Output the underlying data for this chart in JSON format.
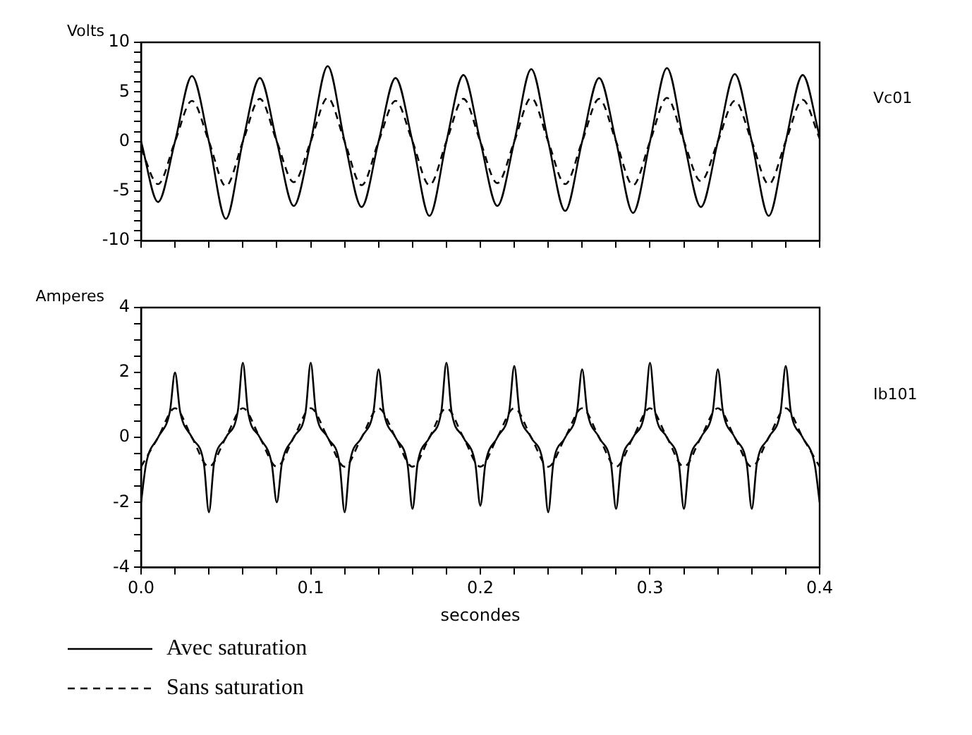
{
  "chart_data": [
    {
      "type": "line",
      "ylabel": "Volts",
      "annotations": [
        "Vc01"
      ],
      "tick_labels": "y",
      "legend": false,
      "x": [
        0,
        0.01,
        0.02,
        0.03,
        0.04,
        0.05,
        0.06,
        0.07,
        0.08,
        0.09,
        0.1,
        0.11,
        0.12,
        0.13,
        0.14,
        0.15,
        0.16,
        0.17,
        0.18,
        0.19,
        0.2,
        0.21,
        0.22,
        0.23,
        0.24,
        0.25,
        0.26,
        0.27,
        0.28,
        0.29,
        0.3,
        0.31,
        0.32,
        0.33,
        0.34,
        0.35,
        0.36,
        0.37,
        0.38,
        0.39,
        0.4
      ],
      "series": [
        {
          "color": "#000000",
          "line_style": "solid",
          "values": [
            0,
            -6.1,
            0,
            6.6,
            0,
            -7.8,
            0,
            6.4,
            0,
            -6.5,
            0,
            7.6,
            0,
            -6.6,
            0,
            6.4,
            0,
            -7.5,
            0,
            6.7,
            0,
            -6.5,
            0,
            7.3,
            0,
            -7.0,
            0,
            6.4,
            0,
            -7.2,
            0,
            7.4,
            0,
            -6.6,
            0,
            6.8,
            0,
            -7.5,
            0,
            6.7,
            0.5
          ]
        },
        {
          "color": "#000000",
          "line_style": "dashed",
          "values": [
            -0.7,
            -4.3,
            0,
            4.1,
            0,
            -4.5,
            0,
            4.3,
            0,
            -4.1,
            0,
            4.4,
            0,
            -4.4,
            0,
            4.1,
            0,
            -4.4,
            0,
            4.3,
            0,
            -4.2,
            0,
            4.4,
            0,
            -4.3,
            0,
            4.3,
            0,
            -4.4,
            0,
            4.4,
            0,
            -4.0,
            0,
            4.1,
            0,
            -4.3,
            0,
            4.2,
            0.3
          ]
        }
      ],
      "xlim": [
        0,
        0.4
      ],
      "xticks": [
        {
          "value": 0,
          "label": null
        },
        {
          "value": 0.02,
          "label": null
        },
        {
          "value": 0.04,
          "label": null
        },
        {
          "value": 0.06,
          "label": null
        },
        {
          "value": 0.08,
          "label": null
        },
        {
          "value": 0.1,
          "label": null
        },
        {
          "value": 0.12,
          "label": null
        },
        {
          "value": 0.14,
          "label": null
        },
        {
          "value": 0.16,
          "label": null
        },
        {
          "value": 0.18,
          "label": null
        },
        {
          "value": 0.2,
          "label": null
        },
        {
          "value": 0.22,
          "label": null
        },
        {
          "value": 0.24,
          "label": null
        },
        {
          "value": 0.26,
          "label": null
        },
        {
          "value": 0.28,
          "label": null
        },
        {
          "value": 0.3,
          "label": null
        },
        {
          "value": 0.32,
          "label": null
        },
        {
          "value": 0.34,
          "label": null
        },
        {
          "value": 0.36,
          "label": null
        },
        {
          "value": 0.38,
          "label": null
        },
        {
          "value": 0.4,
          "label": null
        }
      ],
      "ylim": [
        -10,
        10
      ],
      "yticks": [
        -10,
        {
          "value": -9,
          "label": null
        },
        {
          "value": -8,
          "label": null
        },
        {
          "value": -7,
          "label": null
        },
        {
          "value": -6,
          "label": null
        },
        -5,
        {
          "value": -4,
          "label": null
        },
        {
          "value": -3,
          "label": null
        },
        {
          "value": -2,
          "label": null
        },
        {
          "value": -1,
          "label": null
        },
        0,
        {
          "value": 1,
          "label": null
        },
        {
          "value": 2,
          "label": null
        },
        {
          "value": 3,
          "label": null
        },
        {
          "value": 4,
          "label": null
        },
        5,
        {
          "value": 6,
          "label": null
        },
        {
          "value": 7,
          "label": null
        },
        {
          "value": 8,
          "label": null
        },
        {
          "value": 9,
          "label": null
        },
        10
      ]
    },
    {
      "type": "line",
      "ylabel": "Amperes",
      "xlabel": "secondes",
      "annotations": [
        "Ib101"
      ],
      "legend": "bottom",
      "x": [
        0,
        0.003,
        0.01,
        0.017,
        0.02,
        0.023,
        0.03,
        0.037,
        0.04,
        0.043,
        0.05,
        0.057,
        0.06,
        0.063,
        0.07,
        0.077,
        0.08,
        0.083,
        0.09,
        0.097,
        0.1,
        0.103,
        0.11,
        0.117,
        0.12,
        0.123,
        0.13,
        0.137,
        0.14,
        0.143,
        0.15,
        0.157,
        0.16,
        0.163,
        0.17,
        0.177,
        0.18,
        0.183,
        0.19,
        0.197,
        0.2,
        0.203,
        0.21,
        0.217,
        0.22,
        0.223,
        0.23,
        0.237,
        0.24,
        0.243,
        0.25,
        0.257,
        0.26,
        0.263,
        0.27,
        0.277,
        0.28,
        0.283,
        0.29,
        0.297,
        0.3,
        0.303,
        0.31,
        0.317,
        0.32,
        0.323,
        0.33,
        0.337,
        0.34,
        0.343,
        0.35,
        0.357,
        0.36,
        0.363,
        0.37,
        0.377,
        0.38,
        0.383,
        0.39,
        0.397,
        0.4
      ],
      "series": [
        {
          "name": "Avec saturation",
          "color": "#000000",
          "line_style": "solid",
          "values": [
            -2.0,
            -0.8,
            0,
            0.8,
            2.0,
            0.8,
            0,
            -0.8,
            -2.3,
            -0.8,
            0,
            0.8,
            2.3,
            0.8,
            0,
            -0.8,
            -2.0,
            -0.8,
            0,
            0.8,
            2.3,
            0.8,
            0,
            -0.8,
            -2.3,
            -0.8,
            0,
            0.8,
            2.1,
            0.8,
            0,
            -0.8,
            -2.2,
            -0.8,
            0,
            0.8,
            2.3,
            0.8,
            0,
            -0.8,
            -2.1,
            -0.8,
            0,
            0.8,
            2.2,
            0.8,
            0,
            -0.8,
            -2.3,
            -0.8,
            0,
            0.8,
            2.1,
            0.8,
            0,
            -0.8,
            -2.2,
            -0.8,
            0,
            0.8,
            2.3,
            0.8,
            0,
            -0.8,
            -2.2,
            -0.8,
            0,
            0.8,
            2.1,
            0.8,
            0,
            -0.8,
            -2.2,
            -0.8,
            0,
            0.8,
            2.2,
            0.8,
            0,
            -0.8,
            -2.0
          ]
        },
        {
          "name": "Sans saturation",
          "color": "#000000",
          "line_style": "dashed",
          "x": [
            0,
            0.01,
            0.02,
            0.03,
            0.04,
            0.05,
            0.06,
            0.07,
            0.08,
            0.09,
            0.1,
            0.11,
            0.12,
            0.13,
            0.14,
            0.15,
            0.16,
            0.17,
            0.18,
            0.19,
            0.2,
            0.21,
            0.22,
            0.23,
            0.24,
            0.25,
            0.26,
            0.27,
            0.28,
            0.29,
            0.3,
            0.31,
            0.32,
            0.33,
            0.34,
            0.35,
            0.36,
            0.37,
            0.38,
            0.39,
            0.4
          ],
          "values": [
            -0.9,
            0,
            0.9,
            0,
            -0.9,
            0,
            0.9,
            0,
            -0.9,
            0,
            0.9,
            0,
            -0.9,
            0,
            0.9,
            0,
            -0.9,
            0,
            0.9,
            0,
            -0.9,
            0,
            0.9,
            0,
            -0.9,
            0,
            0.9,
            0,
            -0.9,
            0,
            0.9,
            0,
            -0.9,
            0,
            0.9,
            0,
            -0.9,
            0,
            0.9,
            0,
            -0.9
          ]
        }
      ],
      "xlim": [
        0,
        0.4
      ],
      "xticks": [
        {
          "value": 0,
          "label": "0.0"
        },
        {
          "value": 0.02,
          "label": null
        },
        {
          "value": 0.04,
          "label": null
        },
        {
          "value": 0.06,
          "label": null
        },
        {
          "value": 0.08,
          "label": null
        },
        {
          "value": 0.1,
          "label": "0.1"
        },
        {
          "value": 0.12,
          "label": null
        },
        {
          "value": 0.14,
          "label": null
        },
        {
          "value": 0.16,
          "label": null
        },
        {
          "value": 0.18,
          "label": null
        },
        {
          "value": 0.2,
          "label": "0.2"
        },
        {
          "value": 0.22,
          "label": null
        },
        {
          "value": 0.24,
          "label": null
        },
        {
          "value": 0.26,
          "label": null
        },
        {
          "value": 0.28,
          "label": null
        },
        {
          "value": 0.3,
          "label": "0.3"
        },
        {
          "value": 0.32,
          "label": null
        },
        {
          "value": 0.34,
          "label": null
        },
        {
          "value": 0.36,
          "label": null
        },
        {
          "value": 0.38,
          "label": null
        },
        {
          "value": 0.4,
          "label": "0.4"
        }
      ],
      "ylim": [
        -4,
        4
      ],
      "yticks": [
        -4,
        {
          "value": -3.5,
          "label": null
        },
        {
          "value": -3,
          "label": null
        },
        {
          "value": -2.5,
          "label": null
        },
        -2,
        {
          "value": -1.5,
          "label": null
        },
        {
          "value": -1,
          "label": null
        },
        {
          "value": -0.5,
          "label": null
        },
        0,
        {
          "value": 0.5,
          "label": null
        },
        {
          "value": 1,
          "label": null
        },
        {
          "value": 1.5,
          "label": null
        },
        2,
        {
          "value": 2.5,
          "label": null
        },
        {
          "value": 3,
          "label": null
        },
        {
          "value": 3.5,
          "label": null
        },
        4
      ]
    }
  ]
}
